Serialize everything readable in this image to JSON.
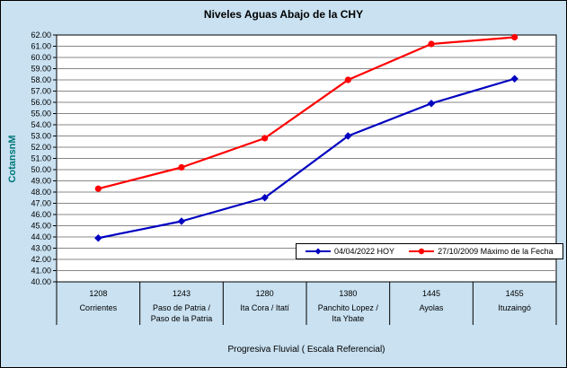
{
  "chart_data": {
    "type": "line",
    "title": "Niveles Aguas Abajo de la CHY",
    "ylabel": "CotansnM",
    "xlabel": "Progresiva Fluvial ( Escala Referencial)",
    "ylim": [
      40,
      62
    ],
    "ytick_step": 1,
    "ytick_format_decimals": 2,
    "grid": "horizontal",
    "legend_position": "bottom-right-inside",
    "categories": [
      {
        "km": "1208",
        "name": [
          "Corrientes"
        ]
      },
      {
        "km": "1243",
        "name": [
          "Paso de Patria /",
          "Paso de la Patria"
        ]
      },
      {
        "km": "1280",
        "name": [
          "Ita Cora / Itatí"
        ]
      },
      {
        "km": "1380",
        "name": [
          "Panchito Lopez /",
          "Ita Ybate"
        ]
      },
      {
        "km": "1445",
        "name": [
          "Ayolas"
        ]
      },
      {
        "km": "1455",
        "name": [
          "Ituzaingó"
        ]
      }
    ],
    "series": [
      {
        "name": "04/04/2022 HOY",
        "color": "#0000C0",
        "marker": "diamond",
        "values": [
          43.9,
          45.4,
          47.5,
          53.0,
          55.9,
          58.1
        ]
      },
      {
        "name": "27/10/2009 Máximo de la Fecha",
        "color": "#FF0000",
        "marker": "circle",
        "values": [
          48.3,
          50.2,
          52.8,
          58.0,
          61.2,
          61.8
        ]
      }
    ]
  },
  "colors": {
    "background": "#C9E1F1",
    "plot_background": "#FFFFFF",
    "gridline": "#888888",
    "axis": "#000000",
    "title_text": "#000000",
    "y_title_text": "#007878",
    "label_text": "#000000"
  }
}
